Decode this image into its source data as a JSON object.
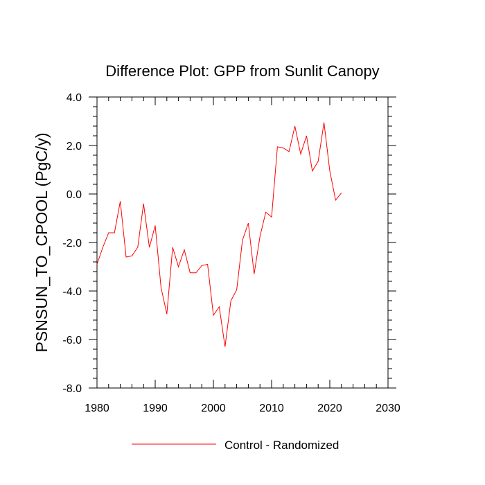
{
  "chart_data": {
    "type": "line",
    "title": "Difference Plot: GPP from Sunlit Canopy",
    "xlabel": "",
    "ylabel": "PSNSUN_TO_CPOOL  (PgC/y)",
    "xlim": [
      1980,
      2030
    ],
    "ylim": [
      -8.0,
      4.0
    ],
    "x_ticks": [
      "1980",
      "1990",
      "2000",
      "2010",
      "2020",
      "2030"
    ],
    "y_ticks": [
      "4.0",
      "2.0",
      "0.0",
      "-2.0",
      "-4.0",
      "-6.0",
      "-8.0"
    ],
    "grid": false,
    "legend_position": "bottom",
    "series": [
      {
        "name": "Control - Randomized",
        "color": "#ff0000",
        "x": [
          1980,
          1981,
          1982,
          1983,
          1984,
          1985,
          1986,
          1987,
          1988,
          1989,
          1990,
          1991,
          1992,
          1993,
          1994,
          1995,
          1996,
          1997,
          1998,
          1999,
          2000,
          2001,
          2002,
          2003,
          2004,
          2005,
          2006,
          2007,
          2008,
          2009,
          2010,
          2011,
          2012,
          2013,
          2014,
          2015,
          2016,
          2017,
          2018,
          2019,
          2020,
          2021,
          2022
        ],
        "y": [
          -2.9,
          -2.2,
          -1.6,
          -1.6,
          -0.3,
          -2.6,
          -2.55,
          -2.2,
          -0.4,
          -2.2,
          -1.3,
          -3.85,
          -4.95,
          -2.2,
          -3.0,
          -2.3,
          -3.25,
          -3.25,
          -2.95,
          -2.9,
          -5.0,
          -4.65,
          -6.3,
          -4.4,
          -3.95,
          -1.9,
          -1.2,
          -3.3,
          -1.75,
          -0.75,
          -0.95,
          1.95,
          1.9,
          1.75,
          2.8,
          1.65,
          2.4,
          0.95,
          1.35,
          2.95,
          0.95,
          -0.25,
          0.05
        ]
      }
    ]
  }
}
